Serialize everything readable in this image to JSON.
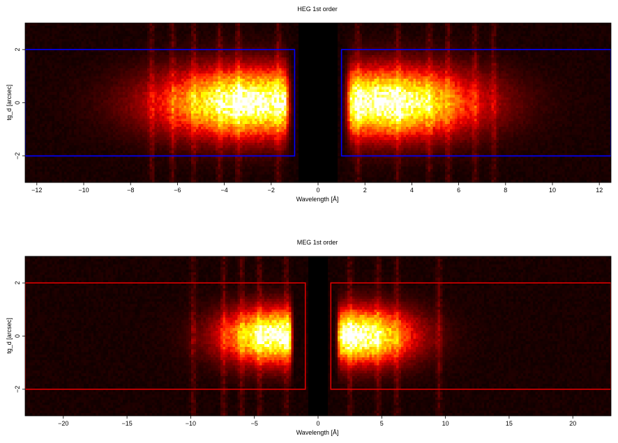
{
  "chart_data": [
    {
      "type": "heatmap",
      "title": "HEG 1st order",
      "xlabel": "Wavelength [Å]",
      "ylabel": "tg_d [arcsec]",
      "xlim": [
        -12.5,
        12.5
      ],
      "ylim": [
        -3.0,
        3.0
      ],
      "xticks": [
        {
          "value": -12,
          "label": "−12"
        },
        {
          "value": -10,
          "label": "−10"
        },
        {
          "value": -8,
          "label": "−8"
        },
        {
          "value": -6,
          "label": "−6"
        },
        {
          "value": -4,
          "label": "−4"
        },
        {
          "value": -2,
          "label": "−2"
        },
        {
          "value": 0,
          "label": "0"
        },
        {
          "value": 2,
          "label": "2"
        },
        {
          "value": 4,
          "label": "4"
        },
        {
          "value": 6,
          "label": "6"
        },
        {
          "value": 8,
          "label": "8"
        },
        {
          "value": 10,
          "label": "10"
        },
        {
          "value": 12,
          "label": "12"
        }
      ],
      "yticks": [
        {
          "value": -2,
          "label": "−2"
        },
        {
          "value": 0,
          "label": "0"
        },
        {
          "value": 2,
          "label": "2"
        }
      ],
      "regions": [
        {
          "x": [
            -12.5,
            -1.0
          ],
          "y": [
            -2.0,
            2.0
          ],
          "color": "#0000ff"
        },
        {
          "x": [
            1.0,
            12.5
          ],
          "y": [
            -2.0,
            2.0
          ],
          "color": "#0000ff"
        }
      ],
      "blobs": [
        {
          "x": [
            -9.0,
            -1.5
          ],
          "peak": -2.8,
          "intensity": 1.0,
          "width": 1.25
        },
        {
          "x": [
            1.5,
            9.0
          ],
          "peak": 2.7,
          "intensity": 1.0,
          "width": 1.25
        }
      ],
      "lines": [
        -7.1,
        -6.2,
        -5.3,
        -4.2,
        -3.4,
        -1.7,
        1.7,
        3.4,
        4.75,
        5.55,
        6.7,
        7.5
      ]
    },
    {
      "type": "heatmap",
      "title": "MEG 1st order",
      "xlabel": "Wavelength [Å]",
      "ylabel": "tg_d [arcsec]",
      "xlim": [
        -23.0,
        23.0
      ],
      "ylim": [
        -3.0,
        3.0
      ],
      "xticks": [
        {
          "value": -20,
          "label": "−20"
        },
        {
          "value": -15,
          "label": "−15"
        },
        {
          "value": -10,
          "label": "−10"
        },
        {
          "value": -5,
          "label": "−5"
        },
        {
          "value": 0,
          "label": "0"
        },
        {
          "value": 5,
          "label": "5"
        },
        {
          "value": 10,
          "label": "10"
        },
        {
          "value": 15,
          "label": "15"
        },
        {
          "value": 20,
          "label": "20"
        }
      ],
      "yticks": [
        {
          "value": -2,
          "label": "−2"
        },
        {
          "value": 0,
          "label": "0"
        },
        {
          "value": 2,
          "label": "2"
        }
      ],
      "regions": [
        {
          "x": [
            -23.0,
            -1.0
          ],
          "y": [
            -2.0,
            2.0
          ],
          "color": "#dd0000"
        },
        {
          "x": [
            1.0,
            23.0
          ],
          "y": [
            -2.0,
            2.0
          ],
          "color": "#dd0000"
        }
      ],
      "blobs": [
        {
          "x": [
            -10.0,
            -2.3
          ],
          "peak": -3.2,
          "intensity": 1.0,
          "width": 1.0
        },
        {
          "x": [
            1.8,
            10.0
          ],
          "peak": 3.0,
          "intensity": 1.0,
          "width": 1.0
        }
      ],
      "lines": [
        -9.8,
        -7.4,
        -6.0,
        -4.6,
        -2.5,
        2.5,
        4.7,
        6.2,
        9.5
      ]
    }
  ]
}
